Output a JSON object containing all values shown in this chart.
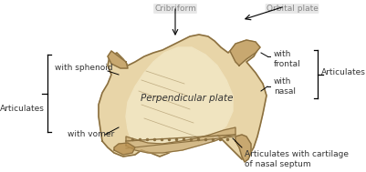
{
  "bg_color": "#ffffff",
  "bone_fill": "#e8d5a8",
  "bone_inner": "#f0e4c0",
  "bone_edge": "#8b7040",
  "bone_dark": "#a08040",
  "figsize": [
    4.02,
    1.89
  ],
  "dpi": 100,
  "labels": {
    "cribriform": "Cribriform",
    "orbital": "Orbital plate",
    "with_frontal": "with\nfrontal",
    "articulates_r": "Articulates",
    "with_nasal": "with\nnasal",
    "with_sphenoid": "with sphenoid",
    "perp_plate": "Perpendicular plate",
    "articulates_l": "Articulates",
    "with_vomer": "with vomer",
    "articulates_cart": "Articulates with cartilage\nof nasal septum"
  }
}
